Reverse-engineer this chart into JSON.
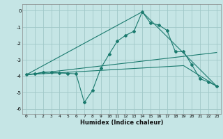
{
  "xlabel": "Humidex (Indice chaleur)",
  "background_color": "#c5e5e5",
  "grid_color": "#a0c8c8",
  "line_color": "#1a7a6e",
  "xlim": [
    -0.5,
    23.5
  ],
  "ylim": [
    -6.3,
    0.4
  ],
  "xtick_vals": [
    0,
    1,
    2,
    3,
    4,
    5,
    6,
    7,
    8,
    9,
    10,
    11,
    12,
    13,
    14,
    15,
    16,
    17,
    18,
    19,
    20,
    21,
    22,
    23
  ],
  "ytick_vals": [
    0,
    -1,
    -2,
    -3,
    -4,
    -5,
    -6
  ],
  "series1_x": [
    0,
    1,
    2,
    3,
    4,
    5,
    6,
    7,
    8,
    9,
    10,
    11,
    12,
    13,
    14,
    15,
    16,
    17,
    18,
    19,
    20,
    21,
    22,
    23
  ],
  "series1_y": [
    -3.9,
    -3.85,
    -3.75,
    -3.75,
    -3.8,
    -3.82,
    -3.85,
    -5.6,
    -4.85,
    -3.5,
    -2.65,
    -1.85,
    -1.5,
    -1.25,
    -0.07,
    -0.75,
    -0.87,
    -1.2,
    -2.5,
    -2.5,
    -3.3,
    -4.15,
    -4.35,
    -4.6
  ],
  "line2_x": [
    0,
    14,
    23
  ],
  "line2_y": [
    -3.9,
    -0.07,
    -4.6
  ],
  "line3_x": [
    0,
    23
  ],
  "line3_y": [
    -3.9,
    -2.55
  ],
  "line4_x": [
    0,
    19,
    23
  ],
  "line4_y": [
    -3.9,
    -3.35,
    -4.6
  ]
}
